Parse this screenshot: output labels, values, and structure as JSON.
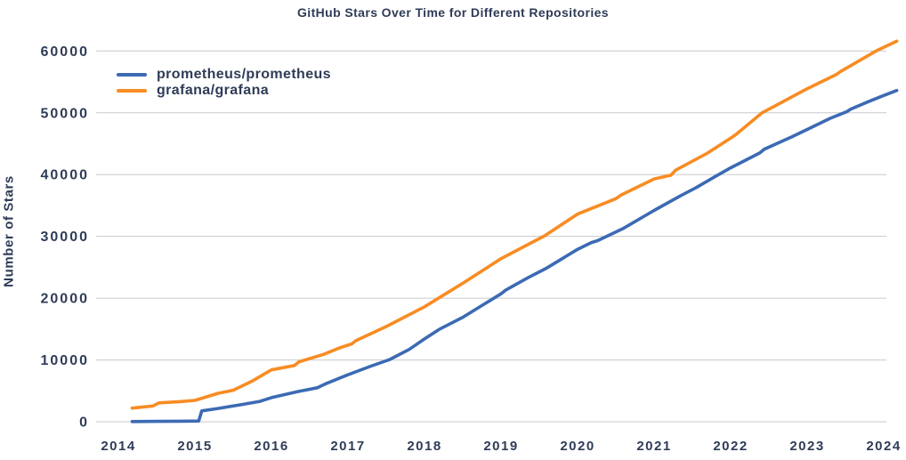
{
  "chart_data": {
    "type": "line",
    "title": "GitHub Stars Over Time for Different Repositories",
    "xlabel": "",
    "ylabel": "Number of Stars",
    "x_ticks": [
      2014,
      2015,
      2016,
      2017,
      2018,
      2019,
      2020,
      2021,
      2022,
      2023,
      2024
    ],
    "y_ticks": [
      0,
      10000,
      20000,
      30000,
      40000,
      50000,
      60000
    ],
    "xlim": [
      2014,
      2024.3
    ],
    "ylim": [
      0,
      63000
    ],
    "grid": "horizontal-only",
    "gridline_color": "#c9cace",
    "text_color": "#2f3c57",
    "background_color": "#ffffff",
    "legend_position": "upper-left-inside",
    "series": [
      {
        "name": "prometheus/prometheus",
        "color": "#3c6ab4",
        "points": [
          [
            2014.18,
            30
          ],
          [
            2014.5,
            60
          ],
          [
            2014.8,
            90
          ],
          [
            2015.05,
            110
          ],
          [
            2015.09,
            1750
          ],
          [
            2015.3,
            2150
          ],
          [
            2015.6,
            2750
          ],
          [
            2015.85,
            3300
          ],
          [
            2016.0,
            3900
          ],
          [
            2016.35,
            4900
          ],
          [
            2016.6,
            5500
          ],
          [
            2016.72,
            6200
          ],
          [
            2017.0,
            7600
          ],
          [
            2017.3,
            9000
          ],
          [
            2017.55,
            10100
          ],
          [
            2017.8,
            11700
          ],
          [
            2018.0,
            13400
          ],
          [
            2018.2,
            15000
          ],
          [
            2018.5,
            16900
          ],
          [
            2018.75,
            18800
          ],
          [
            2019.0,
            20700
          ],
          [
            2019.06,
            21300
          ],
          [
            2019.35,
            23300
          ],
          [
            2019.6,
            24900
          ],
          [
            2020.0,
            27900
          ],
          [
            2020.18,
            29000
          ],
          [
            2020.26,
            29300
          ],
          [
            2020.6,
            31300
          ],
          [
            2021.0,
            34200
          ],
          [
            2021.35,
            36600
          ],
          [
            2021.55,
            37900
          ],
          [
            2021.8,
            39700
          ],
          [
            2022.0,
            41100
          ],
          [
            2022.38,
            43500
          ],
          [
            2022.44,
            44100
          ],
          [
            2022.8,
            46100
          ],
          [
            2023.0,
            47300
          ],
          [
            2023.3,
            49100
          ],
          [
            2023.52,
            50200
          ],
          [
            2023.57,
            50600
          ],
          [
            2023.8,
            51800
          ],
          [
            2024.0,
            52800
          ],
          [
            2024.17,
            53600
          ]
        ]
      },
      {
        "name": "grafana/grafana",
        "color": "#f78c23",
        "points": [
          [
            2014.18,
            2200
          ],
          [
            2014.45,
            2550
          ],
          [
            2014.53,
            3050
          ],
          [
            2014.8,
            3250
          ],
          [
            2015.0,
            3450
          ],
          [
            2015.3,
            4600
          ],
          [
            2015.5,
            5100
          ],
          [
            2015.75,
            6600
          ],
          [
            2016.0,
            8400
          ],
          [
            2016.3,
            9100
          ],
          [
            2016.36,
            9700
          ],
          [
            2016.68,
            10900
          ],
          [
            2016.9,
            12000
          ],
          [
            2017.05,
            12600
          ],
          [
            2017.1,
            13100
          ],
          [
            2017.5,
            15400
          ],
          [
            2018.0,
            18600
          ],
          [
            2018.5,
            22400
          ],
          [
            2018.9,
            25600
          ],
          [
            2019.0,
            26400
          ],
          [
            2019.57,
            30100
          ],
          [
            2020.0,
            33600
          ],
          [
            2020.5,
            36100
          ],
          [
            2020.57,
            36700
          ],
          [
            2021.0,
            39300
          ],
          [
            2021.22,
            39900
          ],
          [
            2021.28,
            40700
          ],
          [
            2021.7,
            43500
          ],
          [
            2022.0,
            45900
          ],
          [
            2022.06,
            46400
          ],
          [
            2022.41,
            50000
          ],
          [
            2023.0,
            53900
          ],
          [
            2023.38,
            56200
          ],
          [
            2023.44,
            56700
          ],
          [
            2023.9,
            60000
          ],
          [
            2024.17,
            61600
          ]
        ]
      }
    ]
  }
}
